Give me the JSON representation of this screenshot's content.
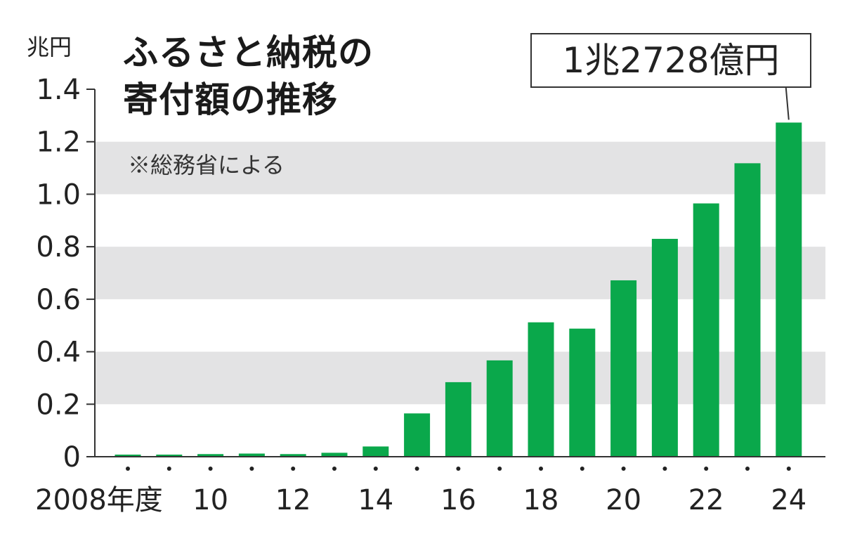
{
  "unit_label": "兆円",
  "title_line1": "ふるさと納税の",
  "title_line2": "寄付額の推移",
  "source_note": "※総務省による",
  "callout": "1兆2728億円",
  "colors": {
    "bar": "#0aa84b",
    "band": "#e3e3e4",
    "axis": "#333333"
  },
  "chart_data": {
    "type": "bar",
    "title": "ふるさと納税の寄付額の推移",
    "ylabel": "兆円",
    "xlabel": "",
    "ylim": [
      0,
      1.4
    ],
    "yticks": [
      "0",
      "0.2",
      "0.4",
      "0.6",
      "0.8",
      "1.0",
      "1.2",
      "1.4"
    ],
    "x_tick_labels": [
      {
        "index": 0,
        "label": "2008年度"
      },
      {
        "index": 2,
        "label": "10"
      },
      {
        "index": 4,
        "label": "12"
      },
      {
        "index": 6,
        "label": "14"
      },
      {
        "index": 8,
        "label": "16"
      },
      {
        "index": 10,
        "label": "18"
      },
      {
        "index": 12,
        "label": "20"
      },
      {
        "index": 14,
        "label": "22"
      },
      {
        "index": 16,
        "label": "24"
      }
    ],
    "categories": [
      "2008",
      "2009",
      "2010",
      "2011",
      "2012",
      "2013",
      "2014",
      "2015",
      "2016",
      "2017",
      "2018",
      "2019",
      "2020",
      "2021",
      "2022",
      "2023",
      "2024"
    ],
    "values": [
      0.008,
      0.008,
      0.01,
      0.012,
      0.01,
      0.015,
      0.039,
      0.165,
      0.284,
      0.367,
      0.512,
      0.488,
      0.672,
      0.83,
      0.965,
      1.118,
      1.273
    ],
    "grid": "alternating horizontal bands",
    "legend": "none"
  }
}
